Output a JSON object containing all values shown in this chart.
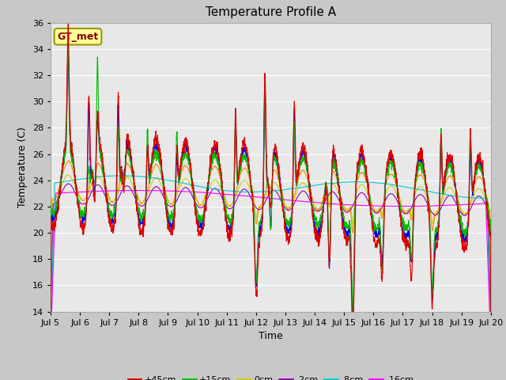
{
  "title": "Temperature Profile A",
  "xlabel": "Time",
  "ylabel": "Temperature (C)",
  "ylim": [
    14,
    36
  ],
  "yticks": [
    14,
    16,
    18,
    20,
    22,
    24,
    26,
    28,
    30,
    32,
    34,
    36
  ],
  "x_tick_labels": [
    "Jul 5",
    "Jul 6",
    "Jul 7",
    "Jul 8",
    "Jul 9",
    "Jul 10",
    "Jul 11",
    "Jul 12",
    "Jul 13",
    "Jul 14",
    "Jul 15",
    "Jul 16",
    "Jul 17",
    "Jul 18",
    "Jul 19",
    "Jul 20"
  ],
  "series_colors": {
    "+45cm": "#dd0000",
    "+30cm": "#0000dd",
    "+15cm": "#00bb00",
    "+5cm": "#ff8800",
    "0cm": "#cccc00",
    "-2cm": "#9900aa",
    "-8cm": "#00cccc",
    "-16cm": "#ff00ff"
  },
  "legend_label": "GT_met",
  "legend_box_color": "#ffff99",
  "legend_box_edge": "#999900",
  "fig_bg": "#c8c8c8",
  "ax_bg": "#e8e8e8",
  "grid_color": "#ffffff",
  "title_fontsize": 11,
  "axis_fontsize": 9,
  "tick_fontsize": 8
}
